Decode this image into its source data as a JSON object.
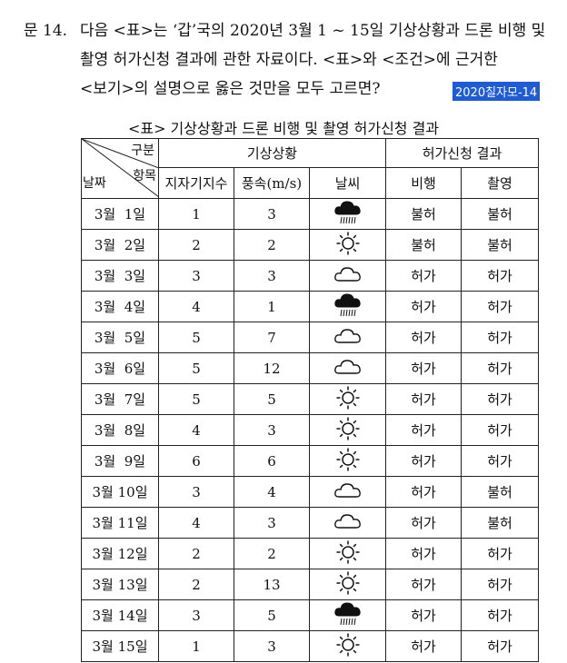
{
  "question": {
    "number": "문 14.",
    "line1": "다음 <표>는 ‘갑’국의 2020년 3월 1 ~ 15일 기상상황과 드론 비행 및",
    "line2": "촬영 허가신청 결과에 관한 자료이다. <표>와 <조건>에 근거한",
    "line3": "<보기>의 설명으로 옳은 것만을 모두 고르면?",
    "tag": "2020칠자모-14"
  },
  "table": {
    "caption": "<표> 기상상황과 드론 비행 및 촬영 허가신청 결과",
    "header": {
      "corner_top": "구분",
      "corner_mid": "항목",
      "corner_left": "날짜",
      "group_weather": "기상상황",
      "group_permit": "허가신청 결과",
      "col_index": "지자기지수",
      "col_wind": "풍속(m/s)",
      "col_weather": "날씨",
      "col_flight": "비행",
      "col_photo": "촬영"
    },
    "rows": [
      {
        "date": "3월  1일",
        "index": "1",
        "wind": "3",
        "weather": "rain-cloud-icon",
        "flight": "불허",
        "photo": "불허"
      },
      {
        "date": "3월  2일",
        "index": "2",
        "wind": "2",
        "weather": "sun-icon",
        "flight": "불허",
        "photo": "불허"
      },
      {
        "date": "3월  3일",
        "index": "3",
        "wind": "3",
        "weather": "cloud-icon",
        "flight": "허가",
        "photo": "허가"
      },
      {
        "date": "3월  4일",
        "index": "4",
        "wind": "1",
        "weather": "rain-cloud-icon",
        "flight": "허가",
        "photo": "허가"
      },
      {
        "date": "3월  5일",
        "index": "5",
        "wind": "7",
        "weather": "cloud-icon",
        "flight": "허가",
        "photo": "허가"
      },
      {
        "date": "3월  6일",
        "index": "5",
        "wind": "12",
        "weather": "cloud-icon",
        "flight": "허가",
        "photo": "허가"
      },
      {
        "date": "3월  7일",
        "index": "5",
        "wind": "5",
        "weather": "sun-icon",
        "flight": "허가",
        "photo": "허가"
      },
      {
        "date": "3월  8일",
        "index": "4",
        "wind": "3",
        "weather": "sun-icon",
        "flight": "허가",
        "photo": "허가"
      },
      {
        "date": "3월  9일",
        "index": "6",
        "wind": "6",
        "weather": "sun-icon",
        "flight": "허가",
        "photo": "허가"
      },
      {
        "date": "3월 10일",
        "index": "3",
        "wind": "4",
        "weather": "cloud-icon",
        "flight": "허가",
        "photo": "불허"
      },
      {
        "date": "3월 11일",
        "index": "4",
        "wind": "3",
        "weather": "cloud-icon",
        "flight": "허가",
        "photo": "불허"
      },
      {
        "date": "3월 12일",
        "index": "2",
        "wind": "2",
        "weather": "sun-icon",
        "flight": "허가",
        "photo": "허가"
      },
      {
        "date": "3월 13일",
        "index": "2",
        "wind": "13",
        "weather": "sun-icon",
        "flight": "허가",
        "photo": "허가"
      },
      {
        "date": "3월 14일",
        "index": "3",
        "wind": "5",
        "weather": "rain-cloud-icon",
        "flight": "허가",
        "photo": "허가"
      },
      {
        "date": "3월 15일",
        "index": "1",
        "wind": "3",
        "weather": "sun-icon",
        "flight": "허가",
        "photo": "허가"
      }
    ]
  },
  "colors": {
    "tag_bg": "#1e5bd6",
    "tag_text": "#ffffff",
    "rule": "#222222"
  }
}
